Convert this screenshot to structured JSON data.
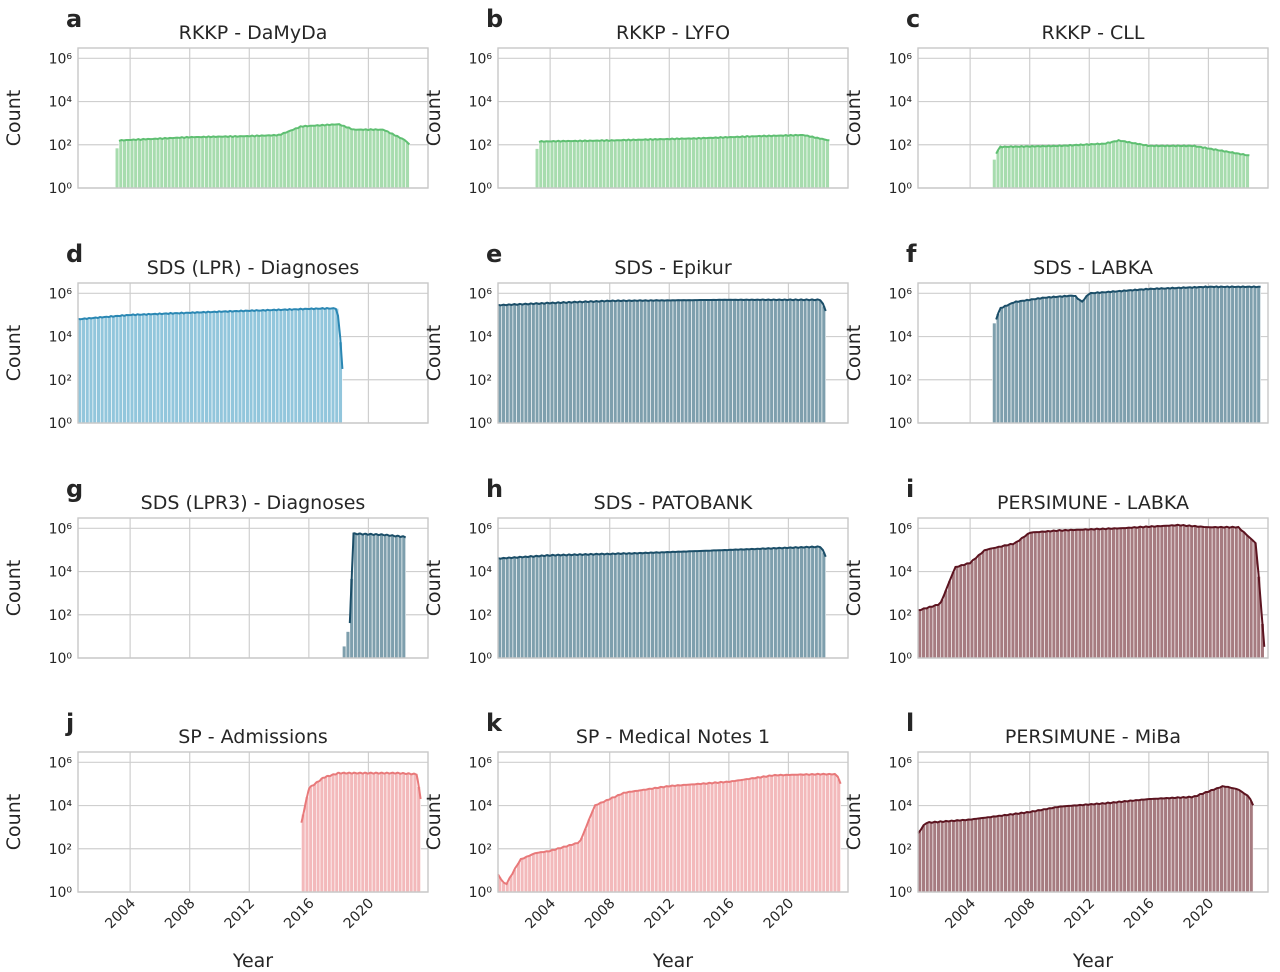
{
  "figure": {
    "y_axis_label": "Count",
    "x_axis_label": "Year",
    "y_tick_labels": [
      "10⁰",
      "10²",
      "10⁴",
      "10⁶"
    ],
    "x_tick_labels": [
      "2004",
      "2008",
      "2012",
      "2016",
      "2020"
    ]
  },
  "chart_data": [
    {
      "type": "bar",
      "panel_letter": "a",
      "title": "RKKP - DaMyDa",
      "color": "#5fbf72",
      "fill": "#a7dcae",
      "log_y": true,
      "ylim": [
        1,
        3000000
      ],
      "xlim": [
        2000.5,
        2024
      ],
      "grid": true,
      "x_start": 2003,
      "x_end": 2022.75,
      "step": 0.25,
      "line_start": 2003.25,
      "curve": [
        [
          2003,
          1.5
        ],
        [
          2003.25,
          2.2
        ],
        [
          2008,
          2.35
        ],
        [
          2012,
          2.4
        ],
        [
          2014,
          2.45
        ],
        [
          2015.5,
          2.85
        ],
        [
          2018,
          2.95
        ],
        [
          2019,
          2.7
        ],
        [
          2021,
          2.7
        ],
        [
          2022.5,
          2.2
        ],
        [
          2022.75,
          2.0
        ]
      ]
    },
    {
      "type": "bar",
      "panel_letter": "b",
      "title": "RKKP - LYFO",
      "color": "#5fbf72",
      "fill": "#a7dcae",
      "log_y": true,
      "ylim": [
        1,
        3000000
      ],
      "xlim": [
        2000.5,
        2024
      ],
      "grid": true,
      "x_start": 2003,
      "x_end": 2022.75,
      "step": 0.25,
      "line_start": 2003.25,
      "curve": [
        [
          2003,
          1.5
        ],
        [
          2003.25,
          2.15
        ],
        [
          2008,
          2.2
        ],
        [
          2014,
          2.3
        ],
        [
          2018,
          2.4
        ],
        [
          2021,
          2.45
        ],
        [
          2022.75,
          2.2
        ]
      ]
    },
    {
      "type": "bar",
      "panel_letter": "c",
      "title": "RKKP - CLL",
      "color": "#5fbf72",
      "fill": "#a7dcae",
      "log_y": true,
      "ylim": [
        1,
        3000000
      ],
      "xlim": [
        2000.5,
        2024
      ],
      "grid": true,
      "x_start": 2005.5,
      "x_end": 2022.75,
      "step": 0.25,
      "line_start": 2005.75,
      "curve": [
        [
          2005.5,
          1.05
        ],
        [
          2005.75,
          1.6
        ],
        [
          2006,
          1.9
        ],
        [
          2010,
          1.95
        ],
        [
          2013,
          2.05
        ],
        [
          2014,
          2.2
        ],
        [
          2016,
          1.95
        ],
        [
          2019,
          1.95
        ],
        [
          2022.75,
          1.5
        ]
      ]
    },
    {
      "type": "bar",
      "panel_letter": "d",
      "title": "SDS (LPR) - Diagnoses",
      "color": "#2a87b3",
      "fill": "#92c6dc",
      "log_y": true,
      "ylim": [
        1,
        3000000
      ],
      "xlim": [
        2000.5,
        2024
      ],
      "grid": true,
      "x_start": 2000.5,
      "x_end": 2018.25,
      "step": 0.25,
      "line_start": 2000.5,
      "curve": [
        [
          2000.5,
          4.8
        ],
        [
          2004,
          5.0
        ],
        [
          2010,
          5.15
        ],
        [
          2017,
          5.3
        ],
        [
          2017.9,
          5.3
        ],
        [
          2018.1,
          4.0
        ],
        [
          2018.25,
          2.5
        ]
      ]
    },
    {
      "type": "bar",
      "panel_letter": "e",
      "title": "SDS - Epikur",
      "color": "#1b4e68",
      "fill": "#7e9fad",
      "log_y": true,
      "ylim": [
        1,
        3000000
      ],
      "xlim": [
        2000.5,
        2024
      ],
      "grid": true,
      "x_start": 2000.5,
      "x_end": 2022.5,
      "step": 0.25,
      "line_start": 2000.5,
      "curve": [
        [
          2000.5,
          5.45
        ],
        [
          2004,
          5.55
        ],
        [
          2008,
          5.65
        ],
        [
          2016,
          5.7
        ],
        [
          2022.2,
          5.7
        ],
        [
          2022.5,
          5.2
        ]
      ]
    },
    {
      "type": "bar",
      "panel_letter": "f",
      "title": "SDS - LABKA",
      "color": "#1b4e68",
      "fill": "#7e9fad",
      "log_y": true,
      "ylim": [
        1,
        3000000
      ],
      "xlim": [
        2000.5,
        2024
      ],
      "grid": true,
      "x_start": 2005.5,
      "x_end": 2023.5,
      "step": 0.25,
      "line_start": 2005.75,
      "curve": [
        [
          2005.5,
          4.45
        ],
        [
          2005.75,
          4.8
        ],
        [
          2006,
          5.3
        ],
        [
          2007,
          5.6
        ],
        [
          2009,
          5.8
        ],
        [
          2011,
          5.9
        ],
        [
          2011.5,
          5.6
        ],
        [
          2012,
          6.0
        ],
        [
          2014,
          6.1
        ],
        [
          2016,
          6.2
        ],
        [
          2018,
          6.25
        ],
        [
          2020,
          6.3
        ],
        [
          2023.5,
          6.3
        ]
      ]
    },
    {
      "type": "bar",
      "panel_letter": "g",
      "title": "SDS (LPR3) - Diagnoses",
      "color": "#1b4e68",
      "fill": "#7e9fad",
      "log_y": true,
      "ylim": [
        1,
        3000000
      ],
      "xlim": [
        2000.5,
        2024
      ],
      "grid": true,
      "x_start": 2018.25,
      "x_end": 2022.5,
      "step": 0.25,
      "line_start": 2018.75,
      "curve": [
        [
          2018.25,
          0.25
        ],
        [
          2018.5,
          0.85
        ],
        [
          2018.75,
          1.6
        ],
        [
          2019,
          5.75
        ],
        [
          2021,
          5.7
        ],
        [
          2022.5,
          5.6
        ]
      ]
    },
    {
      "type": "bar",
      "panel_letter": "h",
      "title": "SDS - PATOBANK",
      "color": "#1b4e68",
      "fill": "#7e9fad",
      "log_y": true,
      "ylim": [
        1,
        3000000
      ],
      "xlim": [
        2000.5,
        2024
      ],
      "grid": true,
      "x_start": 2000.5,
      "x_end": 2022.5,
      "step": 0.25,
      "line_start": 2000.5,
      "curve": [
        [
          2000.5,
          4.6
        ],
        [
          2004,
          4.75
        ],
        [
          2010,
          4.85
        ],
        [
          2016,
          5.0
        ],
        [
          2020,
          5.1
        ],
        [
          2022.2,
          5.15
        ],
        [
          2022.5,
          4.7
        ]
      ]
    },
    {
      "type": "bar",
      "panel_letter": "i",
      "title": "PERSIMUNE - LABKA",
      "color": "#5c1420",
      "fill": "#a67b80",
      "log_y": true,
      "ylim": [
        1,
        3000000
      ],
      "xlim": [
        2000.5,
        2024
      ],
      "grid": true,
      "x_start": 2000.5,
      "x_end": 2023.75,
      "step": 0.25,
      "line_start": 2000.5,
      "curve": [
        [
          2000.5,
          2.2
        ],
        [
          2002,
          2.5
        ],
        [
          2003,
          4.2
        ],
        [
          2004,
          4.4
        ],
        [
          2005,
          5.0
        ],
        [
          2007,
          5.3
        ],
        [
          2008,
          5.8
        ],
        [
          2010,
          5.9
        ],
        [
          2014,
          6.0
        ],
        [
          2018,
          6.15
        ],
        [
          2020,
          6.05
        ],
        [
          2022,
          6.05
        ],
        [
          2023.2,
          5.3
        ],
        [
          2023.75,
          0.5
        ]
      ]
    },
    {
      "type": "bar",
      "panel_letter": "j",
      "title": "SP - Admissions",
      "color": "#e8797a",
      "fill": "#f3b9bb",
      "log_y": true,
      "ylim": [
        1,
        3000000
      ],
      "xlim": [
        2000.5,
        2024
      ],
      "grid": true,
      "x_start": 2015.5,
      "x_end": 2023.5,
      "step": 0.25,
      "line_start": 2015.5,
      "curve": [
        [
          2015.5,
          3.2
        ],
        [
          2016,
          4.8
        ],
        [
          2017,
          5.3
        ],
        [
          2018,
          5.5
        ],
        [
          2022,
          5.5
        ],
        [
          2023.25,
          5.45
        ],
        [
          2023.5,
          4.3
        ]
      ]
    },
    {
      "type": "bar",
      "panel_letter": "k",
      "title": "SP - Medical Notes 1",
      "color": "#e8797a",
      "fill": "#f3b9bb",
      "log_y": true,
      "ylim": [
        1,
        3000000
      ],
      "xlim": [
        2000.5,
        2024
      ],
      "grid": true,
      "x_start": 2000.5,
      "x_end": 2023.5,
      "step": 0.25,
      "line_start": 2000.5,
      "curve": [
        [
          2000.5,
          0.8
        ],
        [
          2001,
          0.3
        ],
        [
          2002,
          1.5
        ],
        [
          2003,
          1.8
        ],
        [
          2004,
          1.9
        ],
        [
          2006,
          2.3
        ],
        [
          2007,
          4.0
        ],
        [
          2009,
          4.6
        ],
        [
          2012,
          4.9
        ],
        [
          2016,
          5.1
        ],
        [
          2019,
          5.4
        ],
        [
          2022,
          5.45
        ],
        [
          2023.25,
          5.45
        ],
        [
          2023.5,
          5.0
        ]
      ]
    },
    {
      "type": "bar",
      "panel_letter": "l",
      "title": "PERSIMUNE - MiBa",
      "color": "#5c1420",
      "fill": "#a67b80",
      "log_y": true,
      "ylim": [
        1,
        3000000
      ],
      "xlim": [
        2000.5,
        2024
      ],
      "grid": true,
      "x_start": 2000.5,
      "x_end": 2023,
      "step": 0.25,
      "line_start": 2000.5,
      "curve": [
        [
          2000.5,
          2.7
        ],
        [
          2001,
          3.2
        ],
        [
          2004,
          3.35
        ],
        [
          2008,
          3.7
        ],
        [
          2010,
          3.95
        ],
        [
          2013,
          4.1
        ],
        [
          2016,
          4.3
        ],
        [
          2019,
          4.4
        ],
        [
          2021,
          4.9
        ],
        [
          2022,
          4.75
        ],
        [
          2022.75,
          4.4
        ],
        [
          2023,
          4.0
        ]
      ]
    }
  ]
}
